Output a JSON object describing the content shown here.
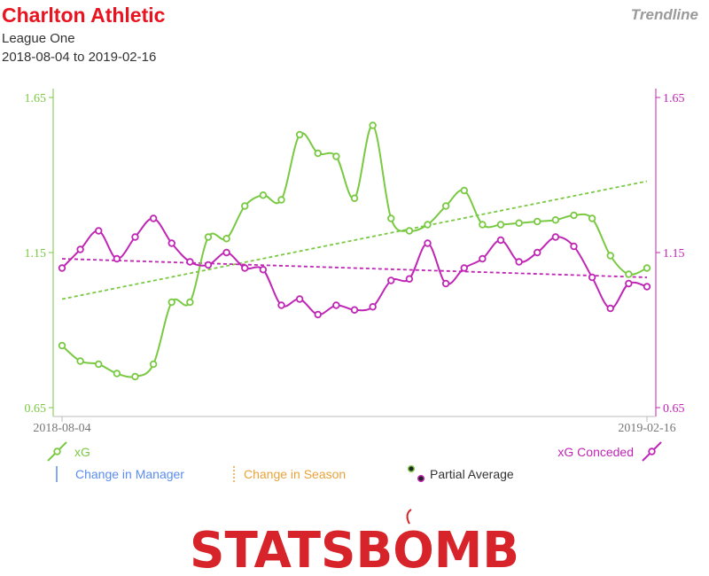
{
  "header": {
    "team": "Charlton Athletic",
    "league": "League One",
    "date_range": "2018-08-04 to 2019-02-16",
    "mode": "Trendline"
  },
  "colors": {
    "xg": "#7ac943",
    "xga": "#c026b4",
    "title": "#e8141f",
    "manager": "#5b8def",
    "season": "#e8a33a",
    "logo": "#d7242a"
  },
  "legend": {
    "xg": "xG",
    "xga": "xG Conceded",
    "manager": "Change in Manager",
    "season": "Change in Season",
    "partial": "Partial Average"
  },
  "logo_text": "STATSBOMB",
  "chart_data": {
    "type": "line",
    "x_start_label": "2018-08-04",
    "x_end_label": "2019-02-16",
    "ylim": [
      0.65,
      1.65
    ],
    "yticks": [
      "0.65",
      "1.15",
      "1.65"
    ],
    "grid": false,
    "series": [
      {
        "name": "xG",
        "axis": "left",
        "values": [
          0.85,
          0.8,
          0.79,
          0.76,
          0.75,
          0.79,
          0.99,
          0.99,
          1.2,
          1.195,
          1.3,
          1.335,
          1.32,
          1.53,
          1.47,
          1.46,
          1.325,
          1.56,
          1.26,
          1.22,
          1.24,
          1.3,
          1.35,
          1.24,
          1.24,
          1.245,
          1.25,
          1.255,
          1.27,
          1.26,
          1.14,
          1.08,
          1.1
        ],
        "trend": [
          1.0,
          1.38
        ]
      },
      {
        "name": "xG Conceded",
        "axis": "right",
        "values": [
          1.1,
          1.16,
          1.22,
          1.13,
          1.2,
          1.26,
          1.18,
          1.12,
          1.11,
          1.15,
          1.1,
          1.095,
          0.98,
          1.0,
          0.95,
          0.98,
          0.965,
          0.975,
          1.06,
          1.065,
          1.18,
          1.05,
          1.1,
          1.13,
          1.19,
          1.12,
          1.15,
          1.2,
          1.17,
          1.07,
          0.97,
          1.05,
          1.04
        ],
        "trend": [
          1.13,
          1.07
        ]
      }
    ]
  }
}
